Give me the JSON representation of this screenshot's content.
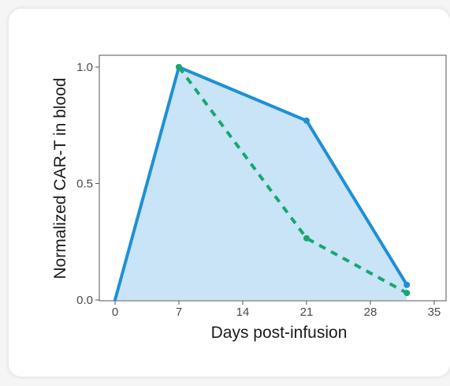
{
  "chart_data": {
    "type": "area",
    "xlabel": "Days post-infusion",
    "ylabel": "Normalized CAR-T in blood",
    "xlim": [
      -1,
      35
    ],
    "ylim": [
      0,
      1.05
    ],
    "x_ticks": [
      0,
      7,
      14,
      21,
      28,
      35
    ],
    "x_tick_labels": [
      "0",
      "7",
      "14",
      "21",
      "28",
      "35"
    ],
    "y_ticks": [
      0,
      0.5,
      1.0
    ],
    "y_tick_labels": [
      "0.0",
      "0.5",
      "1.0"
    ],
    "grid": false,
    "series": [
      {
        "style": "solid",
        "color": "#1f8fd6",
        "fill": "#c8e4f6",
        "points": [
          {
            "x": 0,
            "y": 0.0
          },
          {
            "x": 7,
            "y": 1.0
          },
          {
            "x": 21,
            "y": 0.77
          },
          {
            "x": 32,
            "y": 0.065
          }
        ]
      },
      {
        "style": "dashed",
        "color": "#17a673",
        "points": [
          {
            "x": 7,
            "y": 1.0
          },
          {
            "x": 21,
            "y": 0.265
          },
          {
            "x": 32,
            "y": 0.03
          }
        ]
      }
    ]
  }
}
